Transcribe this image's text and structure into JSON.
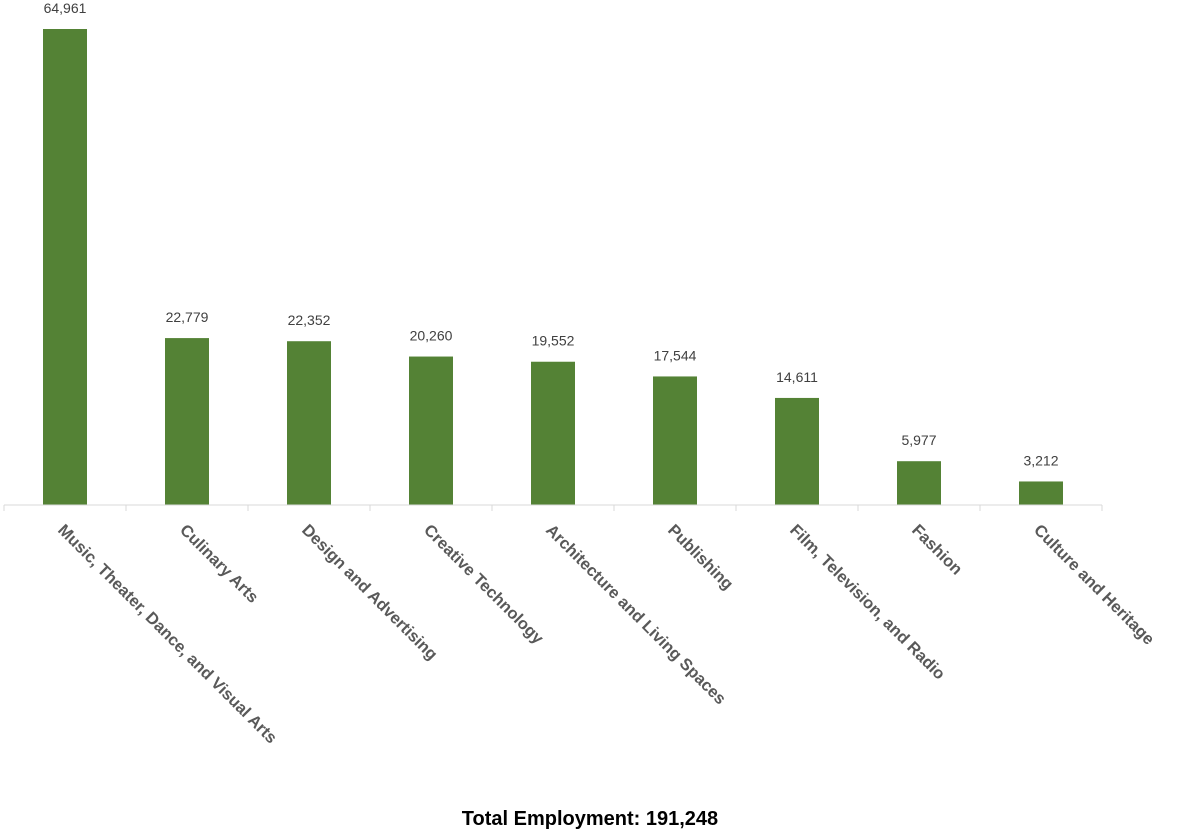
{
  "chart_data": {
    "type": "bar",
    "categories": [
      "Music, Theater, Dance, and Visual Arts",
      "Culinary Arts",
      "Design and Advertising",
      "Creative Technology",
      "Architecture and Living Spaces",
      "Publishing",
      "Film, Television, and Radio",
      "Fashion",
      "Culture and Heritage"
    ],
    "values": [
      64961,
      22779,
      22352,
      20260,
      19552,
      17544,
      14611,
      5977,
      3212
    ],
    "data_labels": [
      "64,961",
      "22,779",
      "22,352",
      "20,260",
      "19,552",
      "17,544",
      "14,611",
      "5,977",
      "3,212"
    ],
    "title": "",
    "xlabel": "",
    "ylabel": "",
    "ylim": [
      0,
      65000
    ],
    "grid": false,
    "legend": "none",
    "bar_color": "#548235"
  },
  "footer": {
    "total_text": "Total Employment: 191,248"
  }
}
